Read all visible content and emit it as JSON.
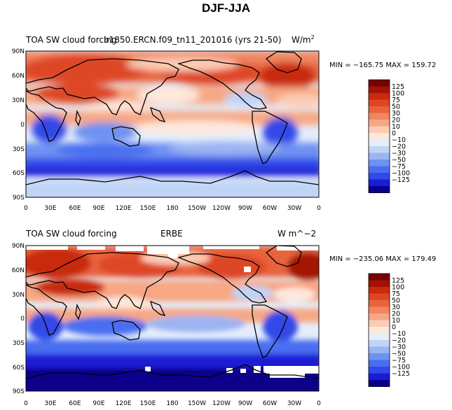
{
  "page": {
    "title": "DJF-JJA"
  },
  "colors": {
    "levels": [
      "#08008a",
      "#1a1cd6",
      "#3348e8",
      "#4a6ef0",
      "#6e92f2",
      "#9bb4f2",
      "#c0d4f6",
      "#e4eefb",
      "#fde8dc",
      "#fcccb4",
      "#f7a784",
      "#f18660",
      "#e8643d",
      "#de4625",
      "#c92a10",
      "#a31206",
      "#7a0000"
    ],
    "land_outline": "#000000",
    "missing": "#ffffff"
  },
  "panels": [
    {
      "left_label": "TOA SW cloud forcing",
      "center_label": "b1850.ERCN.f09_tn11_201016 (yrs 21-50)",
      "units": "W/m",
      "units_sup": "2",
      "stats": "MIN = −165.75 MAX = 159.72"
    },
    {
      "left_label": "TOA SW cloud forcing",
      "center_label": "ERBE",
      "units": "W m^−2",
      "units_sup": "",
      "stats": "MIN = −235.06 MAX = 179.49"
    }
  ],
  "axes": {
    "lat_ticks": [
      "90N",
      "60N",
      "30N",
      "0",
      "30S",
      "60S",
      "90S"
    ],
    "lon_ticks": [
      "0",
      "30E",
      "60E",
      "90E",
      "120E",
      "150E",
      "180",
      "150W",
      "120W",
      "90W",
      "60W",
      "30W",
      "0"
    ]
  },
  "colorbar": {
    "labels": [
      "125",
      "100",
      "75",
      "50",
      "30",
      "20",
      "10",
      "0",
      "−10",
      "−20",
      "−30",
      "−50",
      "−75",
      "−100",
      "−125"
    ]
  },
  "map_data": {
    "projection": "cylindrical-equidistant",
    "lon_range": [
      0,
      360
    ],
    "lat_range": [
      -90,
      90
    ],
    "contour_levels": [
      -125,
      -100,
      -75,
      -50,
      -30,
      -20,
      -10,
      0,
      10,
      20,
      30,
      50,
      75,
      100,
      125
    ]
  }
}
